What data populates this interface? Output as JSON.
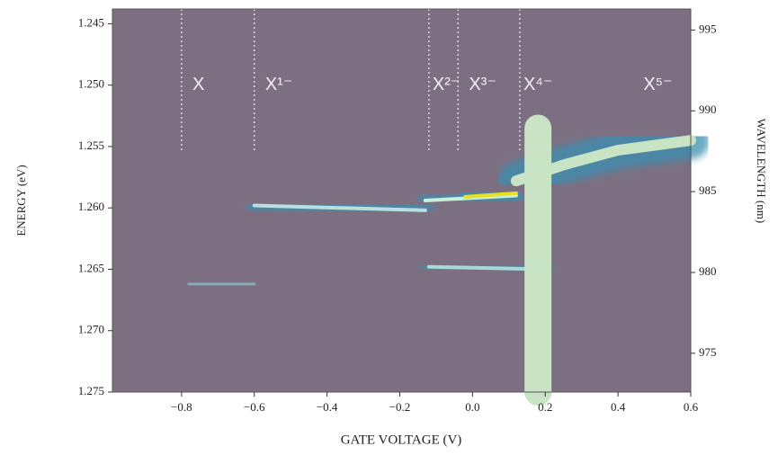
{
  "chart_data": {
    "type": "heatmap",
    "xlabel": "GATE VOLTAGE (V)",
    "ylabel": "ENERGY (eV)",
    "y2label": "WAVELENGTH (nm)",
    "xlim": [
      -0.99,
      0.6
    ],
    "xticks": [
      {
        "value": -0.8,
        "label": "−0.8"
      },
      {
        "value": -0.6,
        "label": "−0.6"
      },
      {
        "value": -0.4,
        "label": "−0.4"
      },
      {
        "value": -0.2,
        "label": "−0.2"
      },
      {
        "value": 0,
        "label": "0.0"
      },
      0.2,
      0.4,
      0.6
    ],
    "ylim": [
      1.2438,
      1.275
    ],
    "yticks": [
      1.245,
      {
        "value": 1.25,
        "label": "1.250"
      },
      1.255,
      {
        "value": 1.26,
        "label": "1.260"
      },
      1.265,
      {
        "value": 1.27,
        "label": "1.270"
      },
      1.275
    ],
    "y2lim": [
      996.3,
      972.6
    ],
    "y2ticks": [
      975,
      980,
      985,
      990,
      995
    ],
    "background": "#7d6f82",
    "glow_color": "#3a8fb0",
    "markers": [
      {
        "label": "X",
        "x": -0.77,
        "y": 1.25,
        "line_x": -0.8
      },
      {
        "label": "X¹⁻",
        "x": -0.57,
        "y": 1.25,
        "line_x": -0.6
      },
      {
        "label": "X²⁻",
        "x": -0.11,
        "y": 1.25,
        "line_x": -0.12
      },
      {
        "label": "X³⁻",
        "x": -0.01,
        "y": 1.25,
        "line_x": -0.04
      },
      {
        "label": "X⁴⁻",
        "x": 0.14,
        "y": 1.25,
        "line_x": 0.13
      },
      {
        "label": "X⁵⁻",
        "x": 0.47,
        "y": 1.25
      }
    ],
    "marker_line_ylim": [
      1.2438,
      1.2555
    ],
    "traces": [
      {
        "x": [
          -0.78,
          -0.6
        ],
        "y": [
          1.2662,
          1.2662
        ],
        "color": "#8aa8bc"
      },
      {
        "x": [
          -0.6,
          -0.13
        ],
        "y": [
          1.2598,
          1.2602
        ],
        "color": "#b8e0e0"
      },
      {
        "x": [
          -0.13,
          0.12
        ],
        "y": [
          1.2594,
          1.259
        ],
        "color": "#c8f0d8"
      },
      {
        "x": [
          -0.02,
          0.12
        ],
        "y": [
          1.2591,
          1.2588
        ],
        "color": "#e8e020"
      },
      {
        "x": [
          -0.12,
          0.2
        ],
        "y": [
          1.2648,
          1.265
        ],
        "color": "#a8d8d8"
      },
      {
        "x": [
          0.18,
          0.18
        ],
        "y": [
          1.2535,
          1.275
        ],
        "color": "#c8e4c4"
      },
      {
        "x": [
          0.12,
          0.25,
          0.4,
          0.6
        ],
        "y": [
          1.2578,
          1.2565,
          1.2553,
          1.2545
        ],
        "color": "#c8e4c4"
      }
    ]
  }
}
